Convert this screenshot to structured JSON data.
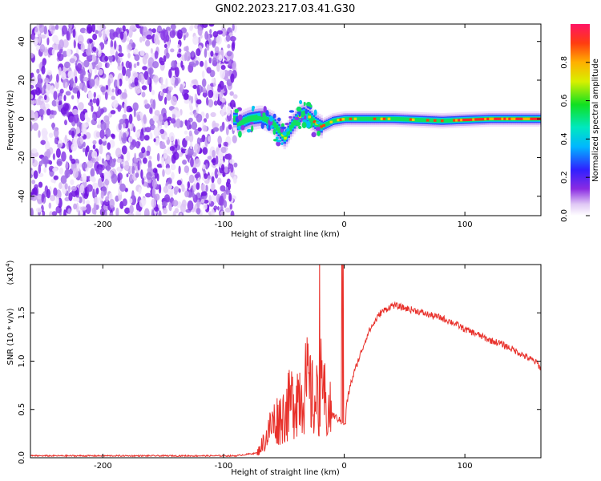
{
  "title": "GN02.2023.217.03.41.G30",
  "chart_data": [
    {
      "type": "heatmap",
      "title": "GN02.2023.217.03.41.G30",
      "xlabel": "Height of straight line (km)",
      "ylabel": "Frequency (Hz)",
      "xlim": [
        -260,
        163
      ],
      "ylim": [
        -50,
        49
      ],
      "xticks": [
        -200,
        -100,
        0,
        100
      ],
      "yticks": [
        -40,
        -20,
        0,
        20,
        40
      ],
      "noise_region_x": [
        -260,
        -90
      ],
      "signal_track": [
        {
          "x": -90,
          "freq": -3
        },
        {
          "x": -80,
          "freq": 0
        },
        {
          "x": -70,
          "freq": 1
        },
        {
          "x": -60,
          "freq": -2
        },
        {
          "x": -50,
          "freq": -10
        },
        {
          "x": -45,
          "freq": -4
        },
        {
          "x": -40,
          "freq": 0
        },
        {
          "x": -35,
          "freq": 3
        },
        {
          "x": -30,
          "freq": 1
        },
        {
          "x": -25,
          "freq": -2
        },
        {
          "x": -20,
          "freq": -4
        },
        {
          "x": -10,
          "freq": -1
        },
        {
          "x": 0,
          "freq": 0
        },
        {
          "x": 40,
          "freq": 0
        },
        {
          "x": 80,
          "freq": -1
        },
        {
          "x": 120,
          "freq": 0
        },
        {
          "x": 163,
          "freq": 0
        }
      ],
      "colorbar": {
        "label": "Normalized spectral amplitude",
        "range": [
          0,
          1
        ],
        "ticks": [
          "0.0",
          "0.2",
          "0.4",
          "0.6",
          "0.8"
        ]
      }
    },
    {
      "type": "line",
      "xlabel": "Height of straight line (km)",
      "ylabel": "SNR (10 * v/v)",
      "y_multiplier_label": "(x10",
      "y_multiplier_exp": "4",
      "y_multiplier_close": ")",
      "xlim": [
        -260,
        163
      ],
      "ylim": [
        0,
        2.0
      ],
      "xticks": [
        -200,
        -100,
        0,
        100
      ],
      "yticks": [
        "0.0",
        "0.5",
        "1.0",
        "1.5"
      ],
      "series": [
        {
          "color": "#e8302a",
          "x": [
            -260,
            -150,
            -90,
            -72,
            -65,
            -60,
            -55,
            -50,
            -45,
            -40,
            -35,
            -30,
            -25,
            -22,
            -18,
            -15,
            -10,
            -5,
            0,
            2,
            5,
            10,
            20,
            30,
            40,
            50,
            60,
            70,
            80,
            90,
            100,
            110,
            120,
            130,
            140,
            150,
            160,
            163
          ],
          "y": [
            0.02,
            0.02,
            0.02,
            0.05,
            0.2,
            0.35,
            0.4,
            0.45,
            0.55,
            0.65,
            0.7,
            0.75,
            0.55,
            0.6,
            0.8,
            0.5,
            0.45,
            0.4,
            0.35,
            0.55,
            0.75,
            0.95,
            1.3,
            1.5,
            1.58,
            1.55,
            1.52,
            1.48,
            1.45,
            1.4,
            1.33,
            1.28,
            1.22,
            1.18,
            1.12,
            1.05,
            0.98,
            0.92
          ]
        }
      ]
    }
  ]
}
